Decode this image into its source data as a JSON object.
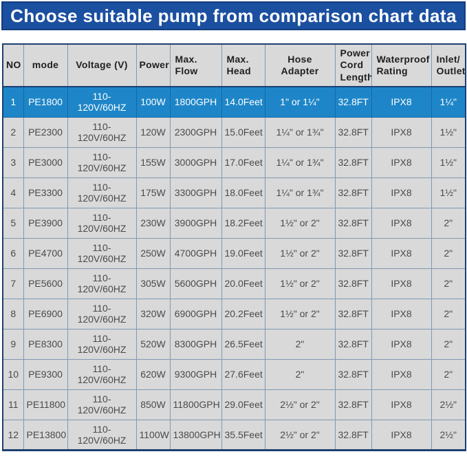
{
  "banner": {
    "title": "Choose suitable pump from comparison chart data"
  },
  "colors": {
    "banner_bg": "#1b4fa0",
    "banner_text": "#ffffff",
    "header_bg": "#d9d9d9",
    "row_bg": "#d9d9d9",
    "highlight_row_bg": "#1e86c8",
    "highlight_row_text": "#ffffff",
    "grid_line": "#7f98b3",
    "outer_border": "#1c3f72",
    "body_text": "#4a4a4a"
  },
  "chart_data": {
    "type": "table",
    "title": "Choose suitable pump from comparison chart data",
    "highlight_row_index": 0,
    "columns": [
      {
        "label": "NO",
        "align": "center"
      },
      {
        "label": "mode",
        "align": "center"
      },
      {
        "label": "Voltage (V)",
        "align": "center"
      },
      {
        "label": "Power",
        "align": "center"
      },
      {
        "label": "Max.\nFlow",
        "align": "left"
      },
      {
        "label": "Max.\nHead",
        "align": "left"
      },
      {
        "label": "Hose Adapter",
        "align": "center"
      },
      {
        "label": "Power\nCord\nLength",
        "align": "left"
      },
      {
        "label": "Waterproof\nRating",
        "align": "left"
      },
      {
        "label": "Inlet/\nOutlet",
        "align": "left"
      }
    ],
    "rows": [
      [
        "1",
        "PE1800",
        "110-120V/60HZ",
        "100W",
        "1800GPH",
        "14.0Feet",
        "1\" or 1¼\"",
        "32.8FT",
        "IPX8",
        "1¼\""
      ],
      [
        "2",
        "PE2300",
        "110-120V/60HZ",
        "120W",
        "2300GPH",
        "15.0Feet",
        "1¼\" or 1¾\"",
        "32.8FT",
        "IPX8",
        "1½\""
      ],
      [
        "3",
        "PE3000",
        "110-120V/60HZ",
        "155W",
        "3000GPH",
        "17.0Feet",
        "1¼\" or 1¾\"",
        "32.8FT",
        "IPX8",
        "1½\""
      ],
      [
        "4",
        "PE3300",
        "110-120V/60HZ",
        "175W",
        "3300GPH",
        "18.0Feet",
        "1¼\" or 1¾\"",
        "32.8FT",
        "IPX8",
        "1½\""
      ],
      [
        "5",
        "PE3900",
        "110-120V/60HZ",
        "230W",
        "3900GPH",
        "18.2Feet",
        "1½\" or 2\"",
        "32.8FT",
        "IPX8",
        "2\""
      ],
      [
        "6",
        "PE4700",
        "110-120V/60HZ",
        "250W",
        "4700GPH",
        "19.0Feet",
        "1½\" or 2\"",
        "32.8FT",
        "IPX8",
        "2\""
      ],
      [
        "7",
        "PE5600",
        "110-120V/60HZ",
        "305W",
        "5600GPH",
        "20.0Feet",
        "1½\" or 2\"",
        "32.8FT",
        "IPX8",
        "2\""
      ],
      [
        "8",
        "PE6900",
        "110-120V/60HZ",
        "320W",
        "6900GPH",
        "20.2Feet",
        "1½\" or 2\"",
        "32.8FT",
        "IPX8",
        "2\""
      ],
      [
        "9",
        "PE8300",
        "110-120V/60HZ",
        "520W",
        "8300GPH",
        "26.5Feet",
        "2\"",
        "32.8FT",
        "IPX8",
        "2\""
      ],
      [
        "10",
        "PE9300",
        "110-120V/60HZ",
        "620W",
        "9300GPH",
        "27.6Feet",
        "2\"",
        "32.8FT",
        "IPX8",
        "2\""
      ],
      [
        "11",
        "PE11800",
        "110-120V/60HZ",
        "850W",
        "11800GPH",
        "29.0Feet",
        "2½\" or 2\"",
        "32.8FT",
        "IPX8",
        "2½\""
      ],
      [
        "12",
        "PE13800",
        "110-120V/60HZ",
        "1100W",
        "13800GPH",
        "35.5Feet",
        "2½\" or 2\"",
        "32.8FT",
        "IPX8",
        "2½\""
      ]
    ],
    "column_keys": [
      "no",
      "mode",
      "voltage",
      "power",
      "max-flow",
      "max-head",
      "hose-adapter",
      "power-cord-length",
      "waterproof-rating",
      "inlet-outlet"
    ]
  }
}
